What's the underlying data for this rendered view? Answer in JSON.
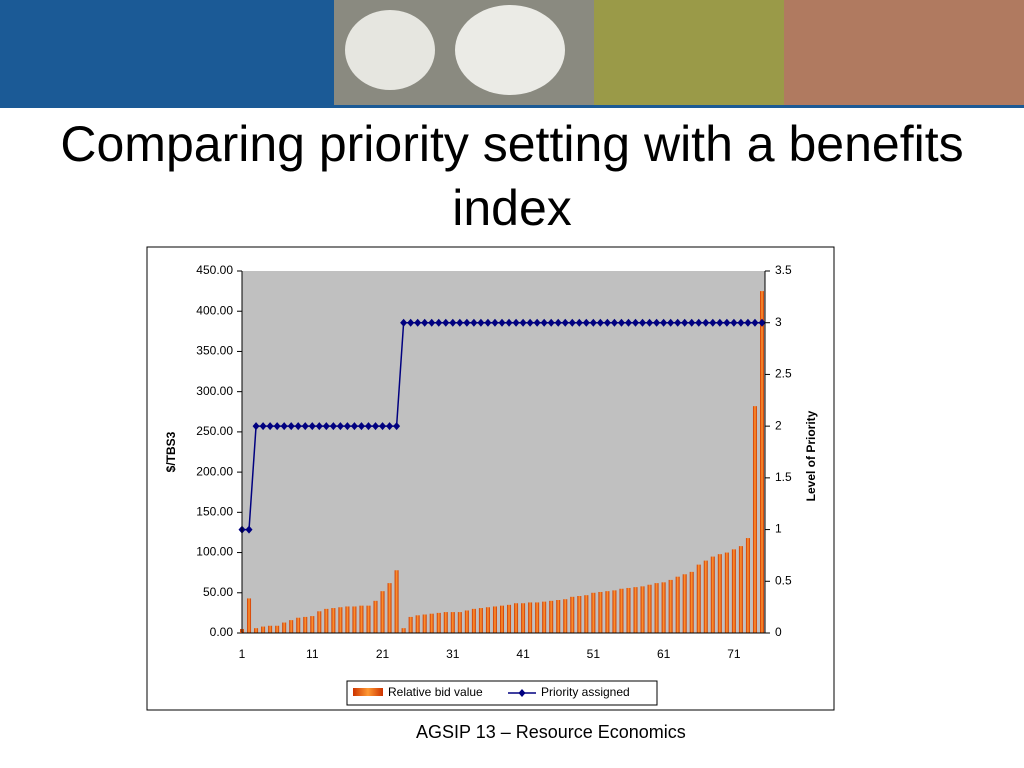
{
  "title": "Comparing priority setting with a benefits index",
  "footer": "AGSIP 13 – Resource Economics",
  "chart_data": {
    "type": "bar",
    "categories": [
      "1",
      null,
      null,
      null,
      null,
      null,
      null,
      null,
      null,
      null,
      "11",
      null,
      null,
      null,
      null,
      null,
      null,
      null,
      null,
      null,
      "21",
      null,
      null,
      null,
      null,
      null,
      null,
      null,
      null,
      null,
      "31",
      null,
      null,
      null,
      null,
      null,
      null,
      null,
      null,
      null,
      "41",
      null,
      null,
      null,
      null,
      null,
      null,
      null,
      null,
      null,
      "51",
      null,
      null,
      null,
      null,
      null,
      null,
      null,
      null,
      null,
      "61",
      null,
      null,
      null,
      null,
      null,
      null,
      null,
      null,
      null,
      "71",
      null,
      null,
      null,
      null
    ],
    "series": [
      {
        "name": "Relative bid value",
        "color": "#cc3300",
        "type": "bar",
        "values": [
          5,
          43,
          6,
          8,
          9,
          9,
          13,
          16,
          19,
          20,
          21,
          27,
          30,
          31,
          32,
          33,
          33,
          34,
          34,
          40,
          52,
          62,
          78,
          6,
          20,
          22,
          23,
          24,
          25,
          26,
          26,
          26,
          28,
          30,
          31,
          32,
          33,
          34,
          35,
          37,
          37,
          38,
          38,
          39,
          40,
          41,
          42,
          45,
          46,
          47,
          50,
          51,
          52,
          53,
          55,
          56,
          57,
          58,
          60,
          62,
          63,
          66,
          70,
          73,
          76,
          85,
          90,
          95,
          98,
          100,
          104,
          108,
          118,
          282,
          425
        ]
      },
      {
        "name": "Priority assigned",
        "color": "#000080",
        "type": "line",
        "axis": "y2",
        "values": [
          1,
          1,
          2,
          2,
          2,
          2,
          2,
          2,
          2,
          2,
          2,
          2,
          2,
          2,
          2,
          2,
          2,
          2,
          2,
          2,
          2,
          2,
          2,
          3,
          3,
          3,
          3,
          3,
          3,
          3,
          3,
          3,
          3,
          3,
          3,
          3,
          3,
          3,
          3,
          3,
          3,
          3,
          3,
          3,
          3,
          3,
          3,
          3,
          3,
          3,
          3,
          3,
          3,
          3,
          3,
          3,
          3,
          3,
          3,
          3,
          3,
          3,
          3,
          3,
          3,
          3,
          3,
          3,
          3,
          3,
          3,
          3,
          3,
          3,
          3
        ]
      }
    ],
    "ylabel": "$/TBS3",
    "y2label": "Level of Priority",
    "ylim": [
      0,
      450
    ],
    "yticks": [
      {
        "value": 0,
        "label": "0.00"
      },
      {
        "value": 50,
        "label": "50.00"
      },
      {
        "value": 100,
        "label": "100.00"
      },
      {
        "value": 150,
        "label": "150.00"
      },
      {
        "value": 200,
        "label": "200.00"
      },
      {
        "value": 250,
        "label": "250.00"
      },
      {
        "value": 300,
        "label": "300.00"
      },
      {
        "value": 350,
        "label": "350.00"
      },
      {
        "value": 400,
        "label": "400.00"
      },
      {
        "value": 450,
        "label": "450.00"
      }
    ],
    "y2lim": [
      0,
      3.5
    ],
    "y2ticks": [
      0,
      0.5,
      1,
      1.5,
      2,
      2.5,
      3,
      3.5
    ],
    "legend": "bottom"
  }
}
